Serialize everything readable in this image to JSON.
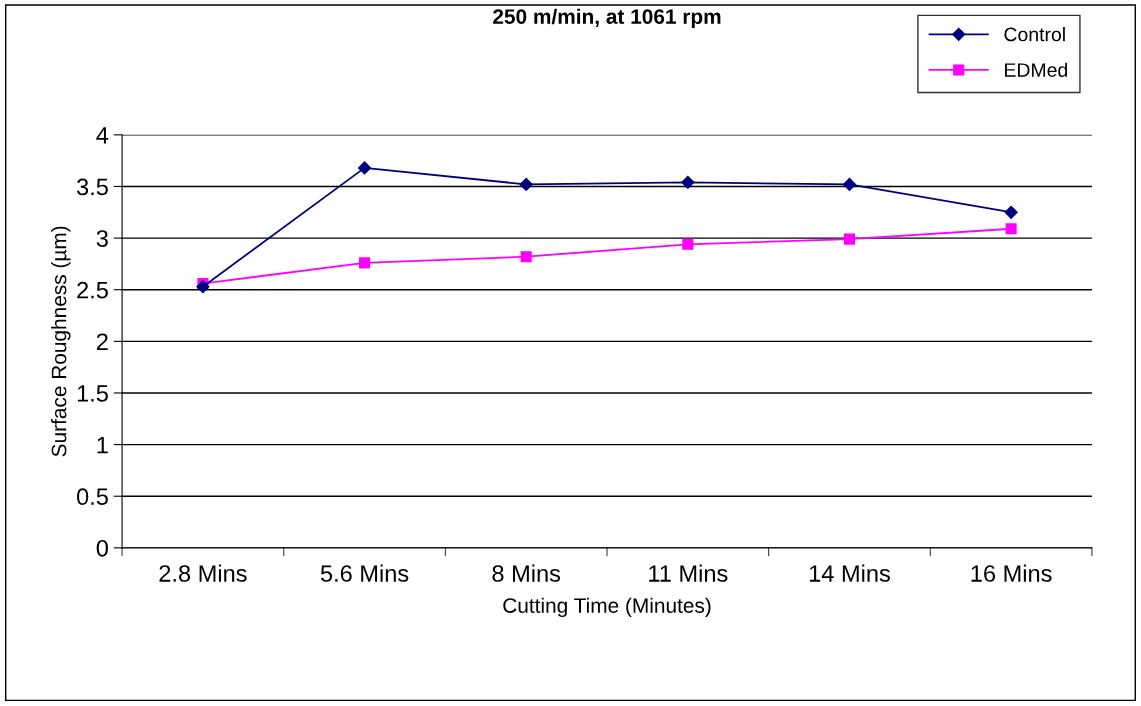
{
  "chart_data": {
    "type": "line",
    "title": "250 m/min, at 1061 rpm",
    "xlabel": "Cutting Time (Minutes)",
    "ylabel": "Surface Roughness (µm)",
    "categories": [
      "2.8 Mins",
      "5.6 Mins",
      "8 Mins",
      "11 Mins",
      "14 Mins",
      "16 Mins"
    ],
    "series": [
      {
        "name": "Control",
        "color": "#000080",
        "marker": "diamond",
        "values": [
          2.53,
          3.68,
          3.52,
          3.54,
          3.52,
          3.25
        ]
      },
      {
        "name": "EDMed",
        "color": "#ff00ff",
        "marker": "square",
        "values": [
          2.56,
          2.76,
          2.82,
          2.94,
          2.99,
          3.09
        ]
      }
    ],
    "ylim": [
      0,
      4
    ],
    "yticks": [
      0,
      0.5,
      1,
      1.5,
      2,
      2.5,
      3,
      3.5,
      4
    ],
    "grid": "y",
    "legend": "top right"
  }
}
